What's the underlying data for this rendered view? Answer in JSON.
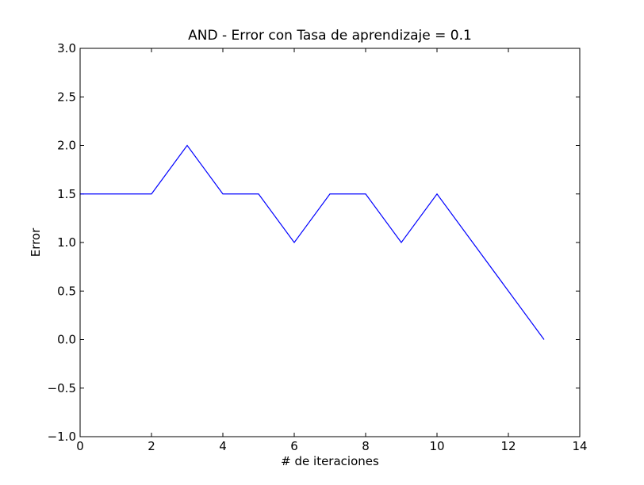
{
  "chart_data": {
    "type": "line",
    "title": "AND - Error con Tasa de aprendizaje = 0.1",
    "xlabel": "# de iteraciones",
    "ylabel": "Error",
    "xlim": [
      0,
      14
    ],
    "ylim": [
      -1.0,
      3.0
    ],
    "xticks": [
      0,
      2,
      4,
      6,
      8,
      10,
      12,
      14
    ],
    "xtick_labels": [
      "0",
      "2",
      "4",
      "6",
      "8",
      "10",
      "12",
      "14"
    ],
    "yticks": [
      -1.0,
      -0.5,
      0.0,
      0.5,
      1.0,
      1.5,
      2.0,
      2.5,
      3.0
    ],
    "ytick_labels": [
      "−1.0",
      "−0.5",
      "0.0",
      "0.5",
      "1.0",
      "1.5",
      "2.0",
      "2.5",
      "3.0"
    ],
    "grid": false,
    "series": [
      {
        "color": "#0000ff",
        "x": [
          0,
          1,
          2,
          3,
          4,
          5,
          6,
          7,
          8,
          9,
          10,
          11,
          12,
          13
        ],
        "y": [
          1.5,
          1.5,
          1.5,
          2.0,
          1.5,
          1.5,
          1.0,
          1.5,
          1.5,
          1.0,
          1.5,
          1.0,
          0.5,
          0.0
        ]
      }
    ]
  }
}
